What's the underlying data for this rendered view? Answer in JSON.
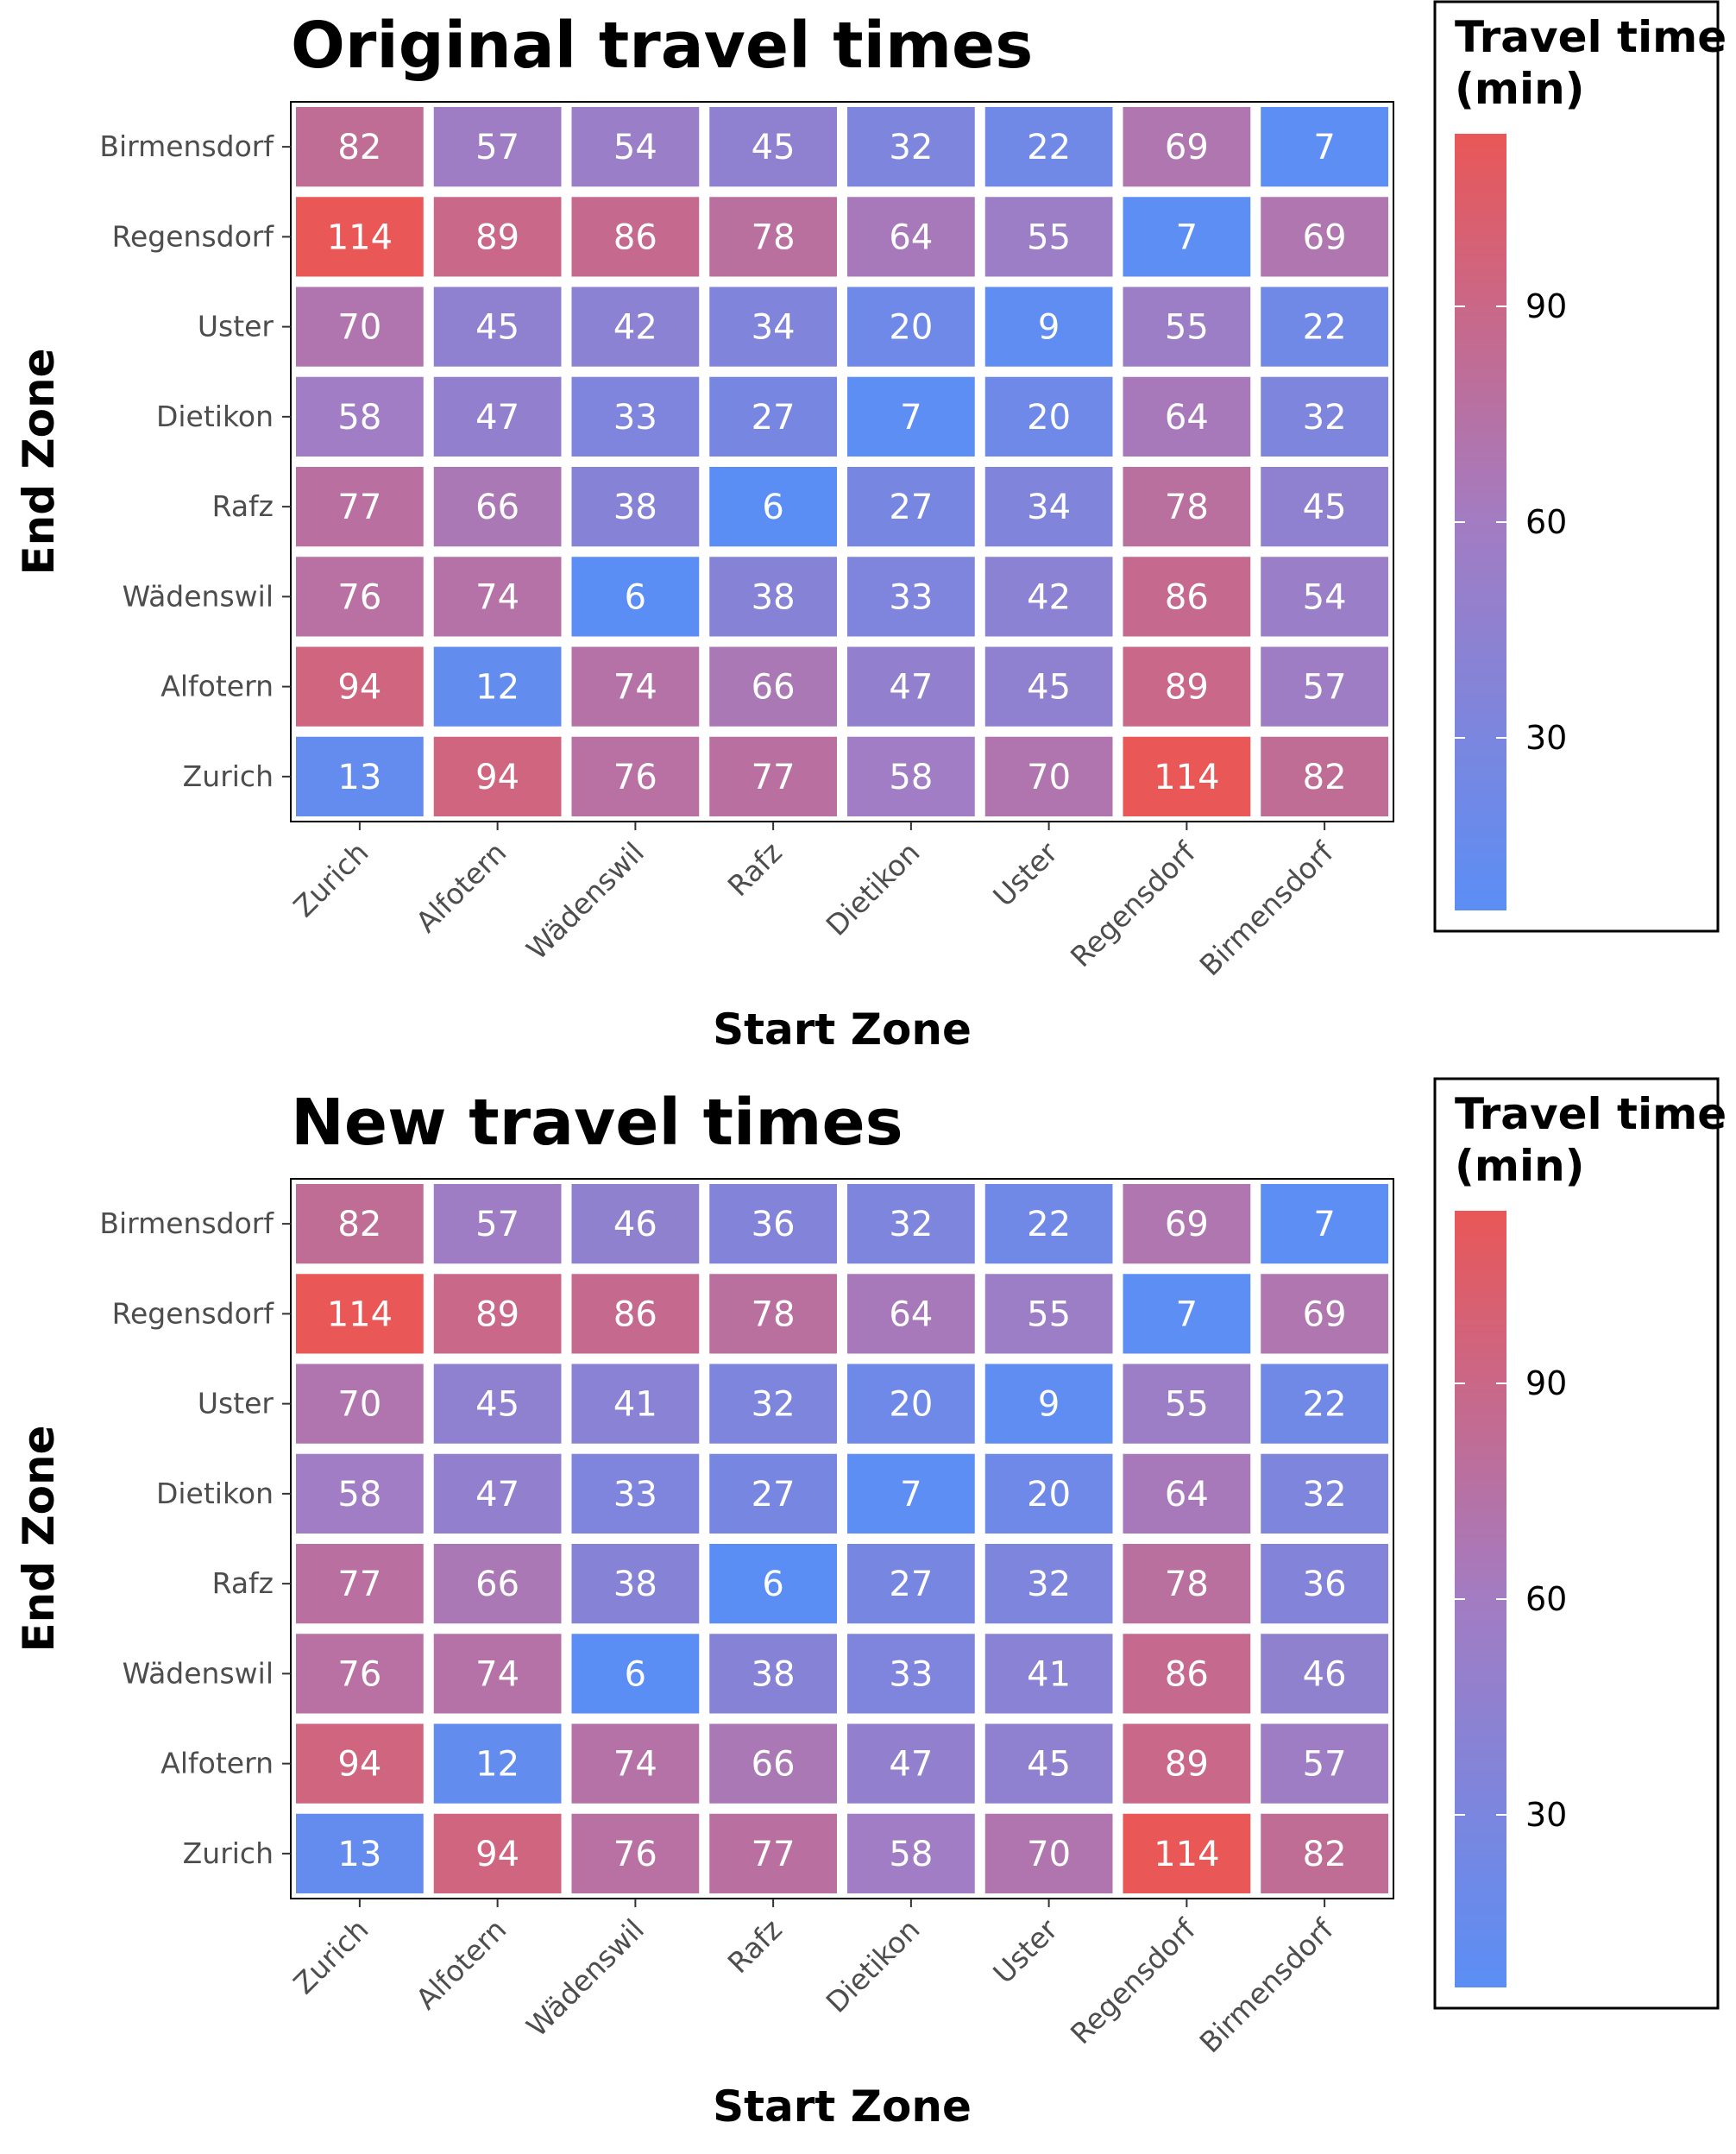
{
  "chart_data": [
    {
      "type": "heatmap",
      "title": "Original travel times",
      "xlabel": "Start Zone",
      "ylabel": "End Zone",
      "x_categories": [
        "Zurich",
        "Alfotern",
        "Wädenswil",
        "Rafz",
        "Dietikon",
        "Uster",
        "Regensdorf",
        "Birmensdorf"
      ],
      "y_categories": [
        "Zurich",
        "Alfotern",
        "Wädenswil",
        "Rafz",
        "Dietikon",
        "Uster",
        "Regensdorf",
        "Birmensdorf"
      ],
      "values": [
        [
          13,
          94,
          76,
          77,
          58,
          70,
          114,
          82
        ],
        [
          94,
          12,
          74,
          66,
          47,
          45,
          89,
          57
        ],
        [
          76,
          74,
          6,
          38,
          33,
          42,
          86,
          54
        ],
        [
          77,
          66,
          38,
          6,
          27,
          34,
          78,
          45
        ],
        [
          58,
          47,
          33,
          27,
          7,
          20,
          64,
          32
        ],
        [
          70,
          45,
          42,
          34,
          20,
          9,
          55,
          22
        ],
        [
          114,
          89,
          86,
          78,
          64,
          55,
          7,
          69
        ],
        [
          82,
          57,
          54,
          45,
          32,
          22,
          69,
          7
        ]
      ],
      "legend": {
        "title": "Travel time (min)",
        "ticks": [
          30,
          60,
          90
        ],
        "range": [
          6,
          114
        ],
        "low_color": "#5b8ef5",
        "mid_color": "#a37cc2",
        "high_color": "#e95757",
        "placement": "right"
      }
    },
    {
      "type": "heatmap",
      "title": "New travel times",
      "xlabel": "Start Zone",
      "ylabel": "End Zone",
      "x_categories": [
        "Zurich",
        "Alfotern",
        "Wädenswil",
        "Rafz",
        "Dietikon",
        "Uster",
        "Regensdorf",
        "Birmensdorf"
      ],
      "y_categories": [
        "Zurich",
        "Alfotern",
        "Wädenswil",
        "Rafz",
        "Dietikon",
        "Uster",
        "Regensdorf",
        "Birmensdorf"
      ],
      "values": [
        [
          13,
          94,
          76,
          77,
          58,
          70,
          114,
          82
        ],
        [
          94,
          12,
          74,
          66,
          47,
          45,
          89,
          57
        ],
        [
          76,
          74,
          6,
          38,
          33,
          41,
          86,
          46
        ],
        [
          77,
          66,
          38,
          6,
          27,
          32,
          78,
          36
        ],
        [
          58,
          47,
          33,
          27,
          7,
          20,
          64,
          32
        ],
        [
          70,
          45,
          41,
          32,
          20,
          9,
          55,
          22
        ],
        [
          114,
          89,
          86,
          78,
          64,
          55,
          7,
          69
        ],
        [
          82,
          57,
          46,
          36,
          32,
          22,
          69,
          7
        ]
      ],
      "legend": {
        "title": "Travel time (min)",
        "ticks": [
          30,
          60,
          90
        ],
        "range": [
          6,
          114
        ],
        "low_color": "#5b8ef5",
        "mid_color": "#a37cc2",
        "high_color": "#e95757",
        "placement": "right"
      }
    }
  ]
}
